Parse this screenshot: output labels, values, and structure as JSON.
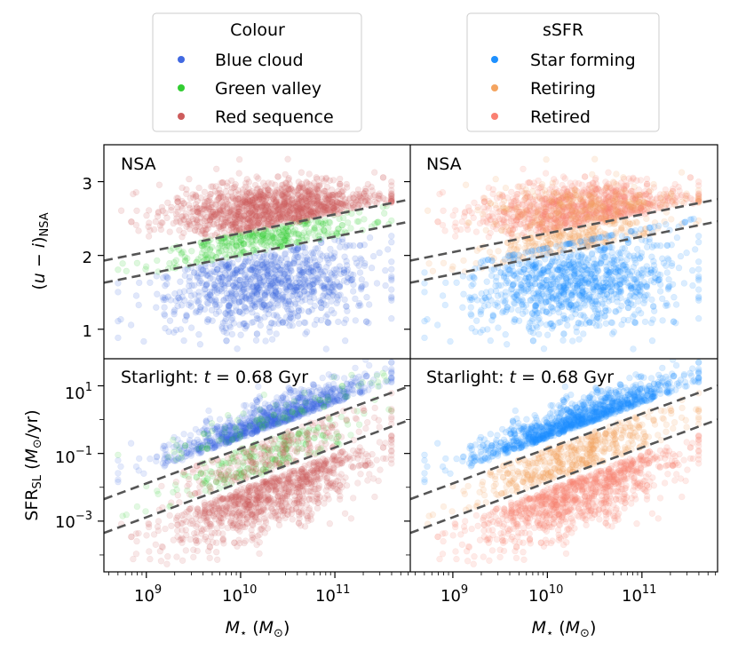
{
  "legends": {
    "colour": {
      "title": "Colour",
      "entries": [
        {
          "label": "Blue cloud",
          "color": "#4169e1"
        },
        {
          "label": "Green valley",
          "color": "#32cd32"
        },
        {
          "label": "Red sequence",
          "color": "#cd5c5c"
        }
      ]
    },
    "ssfr": {
      "title": "sSFR",
      "entries": [
        {
          "label": "Star forming",
          "color": "#1e90ff"
        },
        {
          "label": "Retiring",
          "color": "#f4a460"
        },
        {
          "label": "Retired",
          "color": "#fa8072"
        }
      ]
    }
  },
  "axes": {
    "x_ticks": [
      {
        "label": "10",
        "exp": "9",
        "value": 9
      },
      {
        "label": "10",
        "exp": "10",
        "value": 10
      },
      {
        "label": "10",
        "exp": "11",
        "value": 11
      }
    ],
    "y_top_ticks": [
      "1",
      "2",
      "3"
    ],
    "y_bottom_ticks": [
      {
        "label": "10",
        "exp": "1",
        "value": 1
      },
      {
        "label": "10",
        "exp": "−1",
        "value": -1
      },
      {
        "label": "10",
        "exp": "−3",
        "value": -3
      }
    ],
    "ylabel_top": "(u − i)NSA",
    "ylabel_bottom": "SFRSL (M⊙/yr)",
    "xlabel": "M⋆ (M⊙)"
  },
  "panel_labels": {
    "top_left": "NSA",
    "top_right": "NSA",
    "bottom_left": "Starlight: t = 0.68 Gyr",
    "bottom_right": "Starlight: t = 0.68 Gyr"
  },
  "chart_data": [
    {
      "type": "scatter",
      "panel": "top-left",
      "x_scale": "log",
      "xlim": [
        8.55,
        11.8
      ],
      "ylim": [
        0.6,
        3.5
      ],
      "ylabel": "(u − i)_NSA",
      "color_by": "Colour",
      "series": [
        "Blue cloud",
        "Green valley",
        "Red sequence"
      ],
      "dashed_lines": [
        {
          "x": [
            8.55,
            11.8
          ],
          "y": [
            1.93,
            2.76
          ]
        },
        {
          "x": [
            8.55,
            11.8
          ],
          "y": [
            1.63,
            2.46
          ]
        }
      ]
    },
    {
      "type": "scatter",
      "panel": "top-right",
      "x_scale": "log",
      "xlim": [
        8.55,
        11.8
      ],
      "ylim": [
        0.6,
        3.5
      ],
      "color_by": "sSFR",
      "series": [
        "Star forming",
        "Retiring",
        "Retired"
      ],
      "dashed_lines": [
        {
          "x": [
            8.55,
            11.8
          ],
          "y": [
            1.93,
            2.76
          ]
        },
        {
          "x": [
            8.55,
            11.8
          ],
          "y": [
            1.63,
            2.46
          ]
        }
      ]
    },
    {
      "type": "scatter",
      "panel": "bottom-left",
      "x_scale": "log",
      "y_scale": "log",
      "xlim": [
        8.55,
        11.8
      ],
      "ylim": [
        -4.5,
        1.8
      ],
      "ylabel": "SFR_SL (M⊙/yr)",
      "xlabel": "M⋆ (M⊙)",
      "color_by": "Colour",
      "series": [
        "Blue cloud",
        "Green valley",
        "Red sequence"
      ],
      "dashed_lines": [
        {
          "x": [
            8.55,
            11.8
          ],
          "y": [
            -2.35,
            1.0
          ]
        },
        {
          "x": [
            8.55,
            11.8
          ],
          "y": [
            -3.35,
            0.0
          ]
        }
      ]
    },
    {
      "type": "scatter",
      "panel": "bottom-right",
      "x_scale": "log",
      "y_scale": "log",
      "xlim": [
        8.55,
        11.8
      ],
      "ylim": [
        -4.5,
        1.8
      ],
      "xlabel": "M⋆ (M⊙)",
      "color_by": "sSFR",
      "series": [
        "Star forming",
        "Retiring",
        "Retired"
      ],
      "dashed_lines": [
        {
          "x": [
            8.55,
            11.8
          ],
          "y": [
            -2.35,
            1.0
          ]
        },
        {
          "x": [
            8.55,
            11.8
          ],
          "y": [
            -3.35,
            0.0
          ]
        }
      ]
    }
  ]
}
